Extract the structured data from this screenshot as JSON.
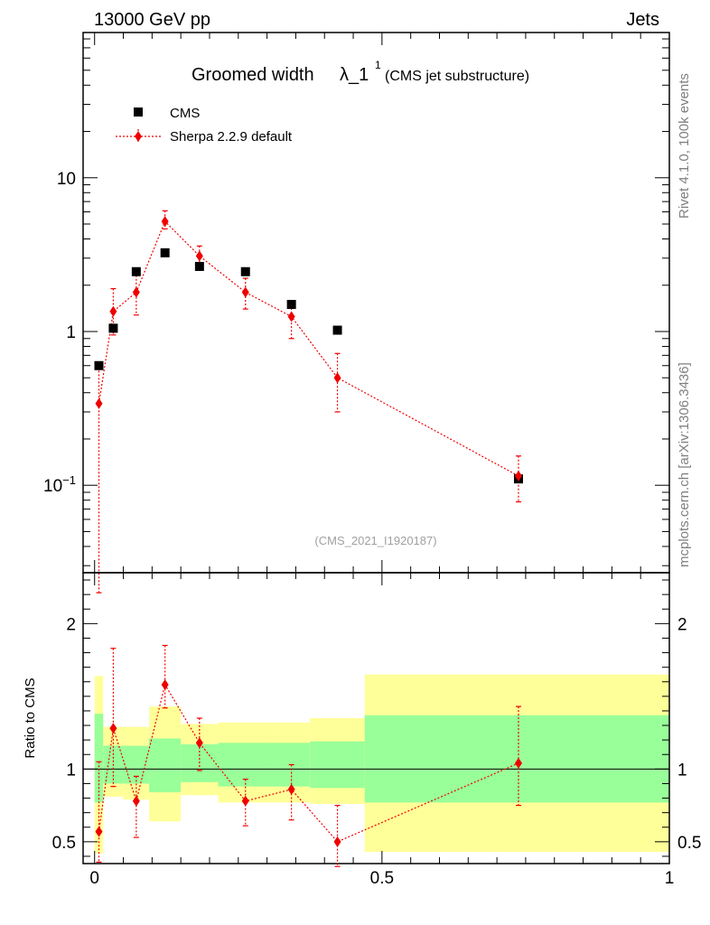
{
  "header": {
    "energy_label": "13000 GeV pp",
    "category_label": "Jets",
    "title_main": "Groomed width",
    "title_lambda": "λ_1",
    "title_sup": "1",
    "title_sub": "(CMS jet substructure)",
    "side_label_rivet": "Rivet 4.1.0,  100k events",
    "side_label_mcplots": "mcplots.cern.ch [arXiv:1306.3436]",
    "analysis_id": "(CMS_2021_I1920187)"
  },
  "legend": {
    "cms_label": "CMS",
    "sherpa_label": "Sherpa 2.2.9 default"
  },
  "colors": {
    "data": "#000000",
    "mc": "#ee0000",
    "band_inner": "#99ff99",
    "band_outer": "#ffff99",
    "analysis_text": "#a0a0a0",
    "side_text": "#808080"
  },
  "chart_data": [
    {
      "type": "scatter",
      "panel": "main",
      "yscale": "log",
      "xlim": [
        -0.02,
        1.0
      ],
      "ylim": [
        0.027,
        88
      ],
      "y_ticklabels": [
        "10",
        "1",
        "10^-1"
      ],
      "series": [
        {
          "name": "CMS",
          "marker": "square",
          "x": [
            0.0075,
            0.0325,
            0.0725,
            0.1225,
            0.1825,
            0.2625,
            0.3425,
            0.4225,
            0.7375
          ],
          "y": [
            0.6,
            1.05,
            2.45,
            3.25,
            2.65,
            2.45,
            1.5,
            1.02,
            0.11
          ]
        },
        {
          "name": "Sherpa 2.2.9 default",
          "marker": "diamond",
          "line": "dotted",
          "x": [
            0.0075,
            0.0325,
            0.0725,
            0.1225,
            0.1825,
            0.2625,
            0.3425,
            0.4225,
            0.7375
          ],
          "y": [
            0.34,
            1.35,
            1.8,
            5.2,
            3.1,
            1.8,
            1.25,
            0.5,
            0.115
          ],
          "err_low": [
            0.02,
            0.95,
            1.28,
            4.65,
            2.64,
            1.4,
            0.9,
            0.3,
            0.078
          ],
          "err_high": [
            0.62,
            1.9,
            2.32,
            6.1,
            3.6,
            2.22,
            1.58,
            0.72,
            0.155
          ]
        }
      ]
    },
    {
      "type": "scatter",
      "panel": "ratio",
      "ylabel": "Ratio to CMS",
      "xlim": [
        -0.02,
        1.0
      ],
      "ylim": [
        0.35,
        2.35
      ],
      "x_ticklabels": [
        "0",
        "0.5",
        "1"
      ],
      "y_ticklabels": [
        "0.5",
        "1",
        "2"
      ],
      "reference_line": 1,
      "bands": {
        "edges": [
          0.0,
          0.015,
          0.05,
          0.095,
          0.15,
          0.215,
          0.31,
          0.375,
          0.47,
          1.0
        ],
        "inner_low": [
          0.77,
          0.9,
          0.9,
          0.84,
          0.91,
          0.88,
          0.88,
          0.87,
          0.77
        ],
        "inner_high": [
          1.38,
          1.16,
          1.16,
          1.21,
          1.17,
          1.18,
          1.18,
          1.19,
          1.37
        ],
        "outer_low": [
          0.42,
          0.81,
          0.79,
          0.64,
          0.82,
          0.77,
          0.77,
          0.76,
          0.43
        ],
        "outer_high": [
          1.64,
          1.29,
          1.29,
          1.43,
          1.31,
          1.32,
          1.32,
          1.35,
          1.65
        ]
      },
      "series": [
        {
          "name": "Sherpa 2.2.9 default",
          "x": [
            0.0075,
            0.0325,
            0.0725,
            0.1225,
            0.1825,
            0.2625,
            0.3425,
            0.4225,
            0.7375
          ],
          "y": [
            0.57,
            1.28,
            0.78,
            1.58,
            1.18,
            0.78,
            0.86,
            0.5,
            1.04
          ],
          "err_low": [
            0.36,
            0.88,
            0.53,
            1.42,
            0.99,
            0.61,
            0.65,
            0.33,
            0.75
          ],
          "err_high": [
            1.05,
            1.83,
            0.95,
            1.85,
            1.35,
            0.93,
            1.03,
            0.75,
            1.43
          ]
        }
      ]
    }
  ]
}
